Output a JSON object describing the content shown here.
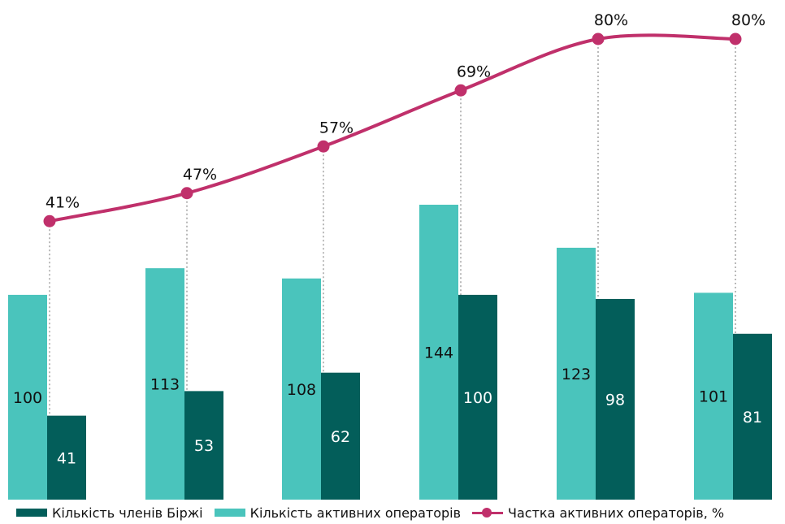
{
  "chart_data": {
    "type": "bar",
    "categories": [
      "",
      "",
      "",
      "",
      "",
      ""
    ],
    "series": [
      {
        "name": "Кількість членів Біржі",
        "values": [
          41,
          53,
          62,
          100,
          98,
          81
        ],
        "color": "#035e5a"
      },
      {
        "name": "Кількість активних операторів",
        "values": [
          100,
          113,
          108,
          144,
          123,
          101
        ],
        "color": "#4ac4bc"
      },
      {
        "name": "Частка активних операторів, %",
        "type": "line",
        "values": [
          41,
          47,
          57,
          69,
          80,
          80
        ],
        "labels": [
          "41%",
          "47%",
          "57%",
          "69%",
          "80%",
          "80%"
        ],
        "color": "#c0306b"
      }
    ],
    "bar_labels_members": [
      "41",
      "53",
      "62",
      "100",
      "98",
      "81"
    ],
    "bar_labels_active": [
      "100",
      "113",
      "108",
      "144",
      "123",
      "101"
    ],
    "ylim": [
      0,
      260
    ],
    "ylim_line": [
      0,
      100
    ],
    "grid": false,
    "legend_position": "bottom",
    "title": "",
    "xlabel": "",
    "ylabel": ""
  },
  "legend": {
    "members_label": "Кількість членів Біржі",
    "active_label": "Кількість активних операторів",
    "share_label": "Частка активних операторів, %"
  }
}
